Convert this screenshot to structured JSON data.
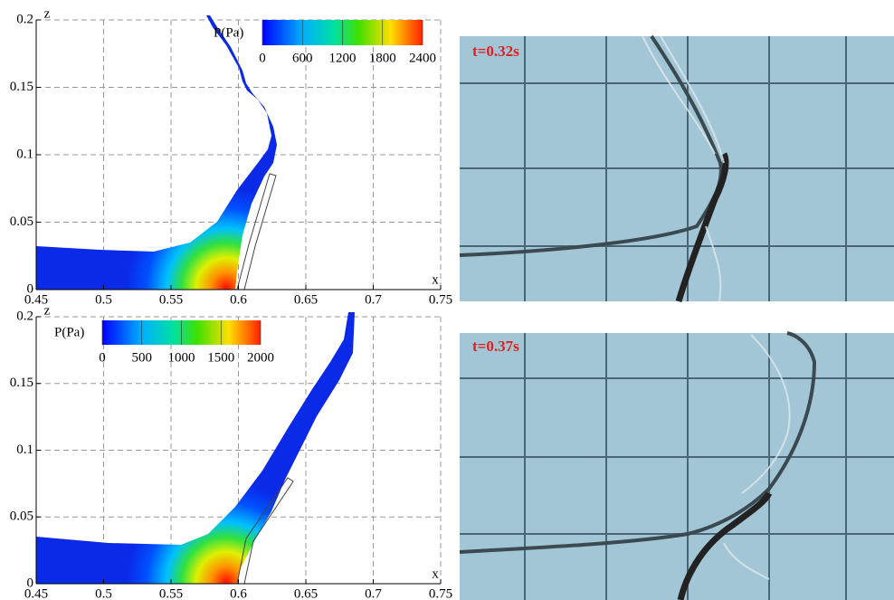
{
  "chart_data": [
    {
      "type": "field",
      "x_label": "x",
      "y_label": "z",
      "xlim": [
        0.45,
        0.75
      ],
      "xticks": [
        0.45,
        0.5,
        0.55,
        0.6,
        0.65,
        0.7,
        0.75
      ],
      "ylim": [
        0,
        0.2
      ],
      "yticks": [
        0,
        0.05,
        0.1,
        0.15,
        0.2
      ],
      "grid": true,
      "colorbar": {
        "title": "P(Pa)",
        "lim": [
          0,
          2400
        ],
        "ticks": [
          0,
          600,
          1200,
          1800,
          2400
        ]
      }
    },
    {
      "type": "field",
      "x_label": "x",
      "y_label": "z",
      "xlim": [
        0.45,
        0.75
      ],
      "xticks": [
        0.45,
        0.5,
        0.55,
        0.6,
        0.65,
        0.7,
        0.75
      ],
      "ylim": [
        0,
        0.2
      ],
      "yticks": [
        0,
        0.05,
        0.1,
        0.15,
        0.2
      ],
      "grid": true,
      "colorbar": {
        "title": "P(Pa)",
        "lim": [
          0,
          2000
        ],
        "ticks": [
          0,
          500,
          1000,
          1500,
          2000
        ]
      }
    }
  ],
  "photos": [
    {
      "label": "t=0.32s"
    },
    {
      "label": "t=0.37s"
    }
  ]
}
